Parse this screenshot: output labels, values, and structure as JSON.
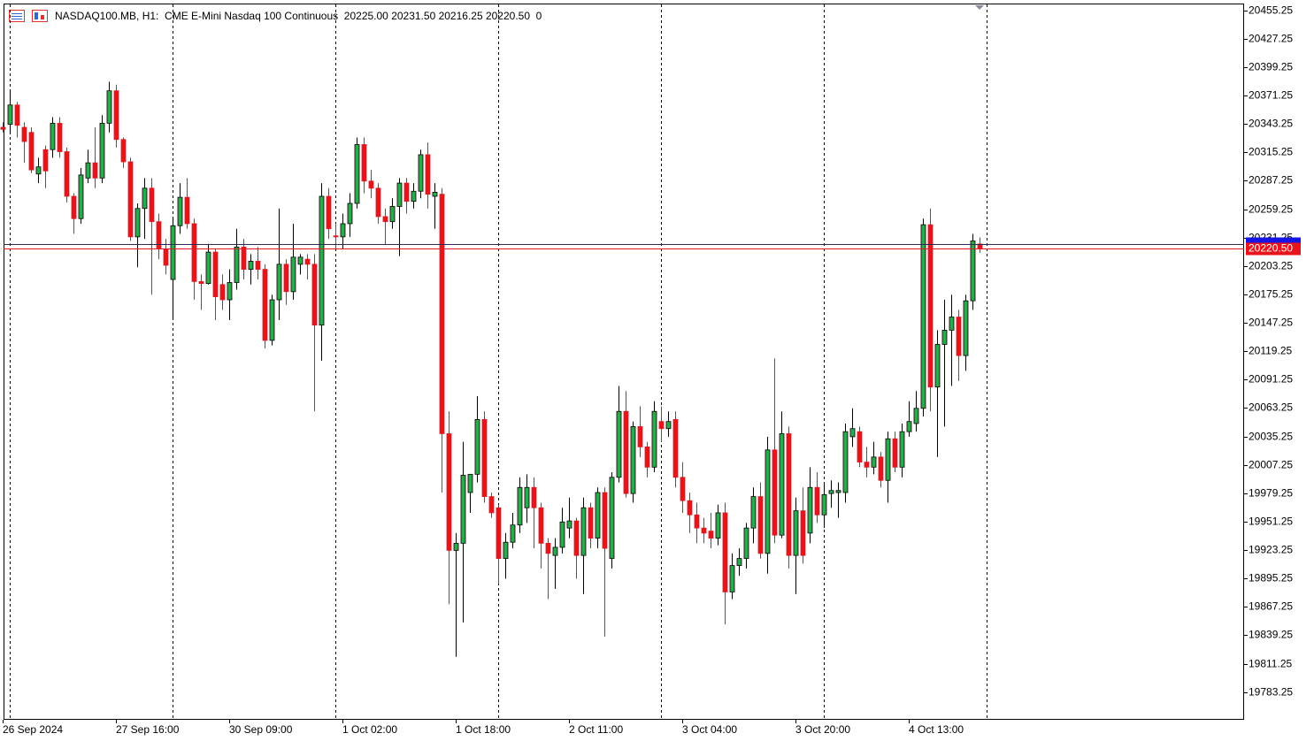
{
  "chart_data": {
    "type": "candlestick",
    "title": "NASDAQ100.MB, H1:  CME E-Mini Nasdaq 100 Continuous  20225.00 20231.50 20216.25 20220.50  0",
    "categories": [
      "26 Sep 2024",
      null,
      null,
      null,
      null,
      null,
      null,
      null,
      null,
      null,
      null,
      null,
      null,
      null,
      null,
      null,
      "27 Sep 16:00",
      null,
      null,
      null,
      null,
      null,
      null,
      null,
      null,
      null,
      null,
      null,
      null,
      null,
      null,
      null,
      "30 Sep 09:00",
      null,
      null,
      null,
      null,
      null,
      null,
      null,
      null,
      null,
      null,
      null,
      null,
      null,
      null,
      null,
      "1 Oct 02:00",
      null,
      null,
      null,
      null,
      null,
      null,
      null,
      null,
      null,
      null,
      null,
      null,
      null,
      null,
      null,
      "1 Oct 18:00",
      null,
      null,
      null,
      null,
      null,
      null,
      null,
      null,
      null,
      null,
      null,
      null,
      null,
      null,
      null,
      "2 Oct 11:00",
      null,
      null,
      null,
      null,
      null,
      null,
      null,
      null,
      null,
      null,
      null,
      null,
      null,
      null,
      null,
      "3 Oct 04:00",
      null,
      null,
      null,
      null,
      null,
      null,
      null,
      null,
      null,
      null,
      null,
      null,
      null,
      null,
      null,
      "3 Oct 20:00",
      null,
      null,
      null,
      null,
      null,
      null,
      null,
      null,
      null,
      null,
      null,
      null,
      null,
      null,
      null,
      "4 Oct 13:00",
      null,
      null,
      null,
      null,
      null,
      null,
      null,
      null,
      null,
      null
    ],
    "open": [
      20340,
      20343,
      20362,
      20340,
      20335,
      20294,
      20318,
      20318,
      20344,
      20316,
      20272,
      20250,
      20290,
      20305,
      20290,
      20344,
      20376,
      20328,
      20306,
      20232,
      20260,
      20280,
      20247,
      20220,
      20190,
      20243,
      20271,
      20245,
      20188,
      20186,
      20217,
      20185,
      20170,
      20187,
      20222,
      20200,
      20208,
      20200,
      20130,
      20170,
      20205,
      20178,
      20205,
      20210,
      20205,
      20145,
      20272,
      20233,
      20232,
      20245,
      20265,
      20323,
      20287,
      20280,
      20252,
      20247,
      20262,
      20285,
      20267,
      20277,
      20313,
      20272,
      20274,
      20038,
      19923,
      19930,
      19980,
      19998,
      20052,
      19976,
      19965,
      19915,
      19931,
      19948,
      19965,
      19985,
      19965,
      19930,
      19918,
      19926,
      19945,
      19952,
      19918,
      19965,
      19935,
      19980,
      19915,
      19995,
      20060,
      19979,
      20045,
      20025,
      20005,
      20050,
      20043,
      20052,
      19995,
      19972,
      19958,
      19945,
      19942,
      19935,
      19960,
      19882,
      19908,
      19915,
      19945,
      19976,
      19920,
      20022,
      19938,
      20038,
      19918,
      19962,
      19940,
      19985,
      19958,
      19979,
      19980,
      19980,
      20035,
      20040,
      20010,
      20005,
      20015,
      19992,
      20033,
      20005,
      20040,
      20048,
      20063,
      20244,
      20084,
      20126,
      20140,
      20153,
      20115,
      20169,
      20225
    ],
    "high": [
      20345,
      20377,
      20365,
      20345,
      20340,
      20310,
      20322,
      20350,
      20350,
      20320,
      20275,
      20300,
      20318,
      20340,
      20352,
      20385,
      20382,
      20330,
      20310,
      20265,
      20290,
      20290,
      20255,
      20230,
      20250,
      20285,
      20290,
      20250,
      20195,
      20225,
      20220,
      20195,
      20200,
      20240,
      20230,
      20215,
      20222,
      20205,
      20175,
      20260,
      20210,
      20245,
      20215,
      20215,
      20215,
      20285,
      20280,
      20245,
      20255,
      20275,
      20330,
      20330,
      20298,
      20285,
      20260,
      20270,
      20290,
      20290,
      20285,
      20318,
      20325,
      20285,
      20280,
      20060,
      19940,
      20030,
      19998,
      20075,
      20060,
      19980,
      19968,
      19940,
      19960,
      19995,
      19998,
      19995,
      19970,
      19935,
      19935,
      19965,
      19975,
      19955,
      19975,
      19970,
      19985,
      19985,
      20000,
      20085,
      20080,
      20050,
      20065,
      20030,
      20070,
      20065,
      20060,
      20060,
      20010,
      19980,
      19970,
      19955,
      19960,
      19968,
      19970,
      19920,
      19925,
      19950,
      19985,
      19990,
      20035,
      20112,
      20060,
      20045,
      19975,
      19985,
      20005,
      20000,
      19988,
      19992,
      19990,
      20048,
      20063,
      20045,
      20025,
      20030,
      20020,
      20040,
      20040,
      20048,
      20070,
      20080,
      20250,
      20260,
      20140,
      20170,
      20175,
      20160,
      20175,
      20235,
      20231.5
    ],
    "low": [
      20335,
      20335,
      20330,
      20305,
      20295,
      20285,
      20280,
      20310,
      20310,
      20266,
      20235,
      20245,
      20285,
      20280,
      20285,
      20335,
      20320,
      20300,
      20228,
      20202,
      20230,
      20175,
      20210,
      20195,
      20150,
      20235,
      20240,
      20170,
      20160,
      20185,
      20150,
      20160,
      20150,
      20180,
      20190,
      20185,
      20190,
      20122,
      20125,
      20150,
      20165,
      20170,
      20195,
      20190,
      20060,
      20110,
      20230,
      20220,
      20220,
      20232,
      20260,
      20275,
      20270,
      20245,
      20225,
      20240,
      20213,
      20255,
      20260,
      20270,
      20260,
      20240,
      19980,
      19870,
      19818,
      19852,
      19960,
      19990,
      19970,
      19955,
      19890,
      19895,
      19925,
      19940,
      19950,
      19925,
      19905,
      19875,
      19885,
      19920,
      19935,
      19895,
      19880,
      19925,
      19925,
      19838,
      19905,
      19990,
      19975,
      19970,
      20015,
      19995,
      20000,
      20030,
      20035,
      19985,
      19960,
      19940,
      19930,
      19930,
      19925,
      19928,
      19850,
      19875,
      19898,
      19905,
      19930,
      19915,
      19900,
      19930,
      19935,
      19905,
      19880,
      19910,
      19930,
      19950,
      19945,
      19965,
      19955,
      19970,
      20025,
      20005,
      19995,
      19998,
      19985,
      19970,
      20000,
      19995,
      20035,
      20040,
      20055,
      20060,
      20015,
      20045,
      20085,
      20090,
      20100,
      20160,
      20216.25
    ],
    "close": [
      20338,
      20362,
      20342,
      20326,
      20298,
      20301,
      20297,
      20344,
      20316,
      20272,
      20250,
      20293,
      20305,
      20290,
      20344,
      20376,
      20328,
      20306,
      20232,
      20260,
      20280,
      20247,
      20220,
      20204,
      20243,
      20271,
      20245,
      20188,
      20186,
      20217,
      20173,
      20170,
      20187,
      20222,
      20200,
      20208,
      20200,
      20130,
      20170,
      20205,
      20178,
      20212,
      20212,
      20205,
      20145,
      20272,
      20240,
      20232,
      20245,
      20265,
      20323,
      20287,
      20280,
      20252,
      20247,
      20262,
      20285,
      20267,
      20277,
      20313,
      20274,
      20276,
      20038,
      19923,
      19930,
      19997,
      19998,
      20052,
      19976,
      19960,
      19915,
      19931,
      19948,
      19985,
      19985,
      19965,
      19930,
      19920,
      19926,
      19951,
      19952,
      19918,
      19965,
      19935,
      19980,
      19925,
      19995,
      20060,
      19979,
      20045,
      20025,
      20005,
      20060,
      20043,
      20050,
      19995,
      19972,
      19958,
      19945,
      19940,
      19935,
      19960,
      19882,
      19908,
      19915,
      19945,
      19976,
      19920,
      20022,
      19938,
      20038,
      19918,
      19962,
      19918,
      19985,
      19958,
      19978,
      19982,
      19982,
      20040,
      20043,
      20010,
      20005,
      20015,
      19992,
      20033,
      20005,
      20040,
      20050,
      20063,
      20244,
      20084,
      20126,
      20140,
      20153,
      20115,
      20169,
      20228,
      20220.5
    ],
    "up_color": "#2ea84a",
    "down_color": "#e8141c",
    "ylim": [
      19756,
      20462
    ],
    "yticks": [
      19783.25,
      19811.25,
      19839.25,
      19867.25,
      19895.25,
      19923.25,
      19951.25,
      19979.25,
      20007.25,
      20035.25,
      20063.25,
      20091.25,
      20119.25,
      20147.25,
      20175.25,
      20203.25,
      20231.25,
      20259.25,
      20287.25,
      20315.25,
      20343.25,
      20371.25,
      20399.25,
      20427.25,
      20455.25
    ],
    "ask": 20225,
    "ask_color": "#1414e6",
    "bid": {
      "value": 20220.5,
      "label": "20220.50"
    },
    "bid_color": "#e8141c",
    "grid": true
  }
}
